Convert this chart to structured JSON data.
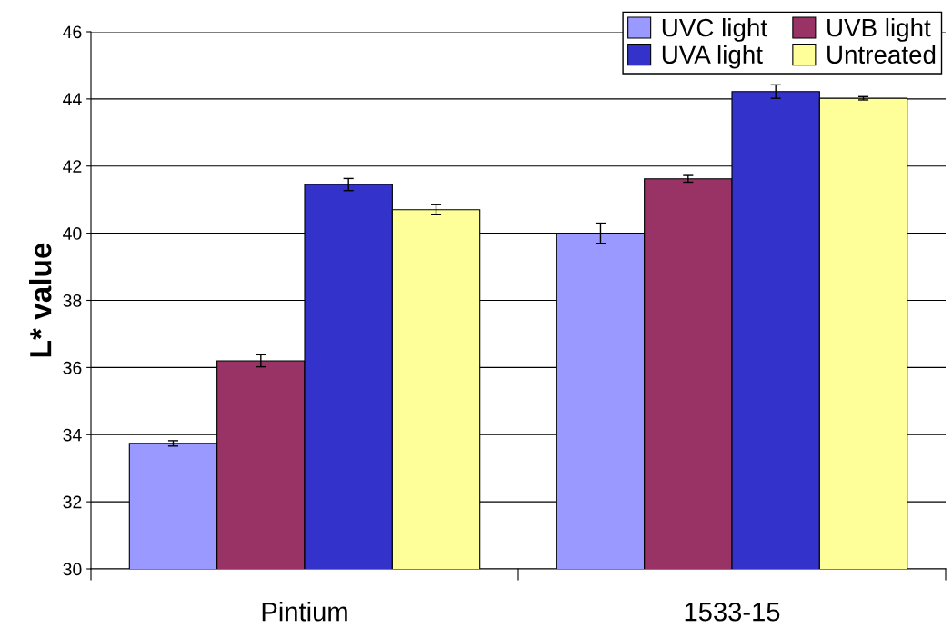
{
  "chart_data": {
    "type": "bar",
    "ylabel": "L* value",
    "categories": [
      "Pintium",
      "1533-15"
    ],
    "series": [
      {
        "name": "UVC light",
        "color": "#9999ff",
        "values": [
          33.74,
          40.0
        ],
        "errors": [
          0.08,
          0.3
        ]
      },
      {
        "name": "UVB light",
        "color": "#993366",
        "values": [
          36.2,
          41.62
        ],
        "errors": [
          0.18,
          0.1
        ]
      },
      {
        "name": "UVA light",
        "color": "#3333cc",
        "values": [
          41.45,
          44.22
        ],
        "errors": [
          0.18,
          0.2
        ]
      },
      {
        "name": "Untreated",
        "color": "#ffff99",
        "values": [
          40.7,
          44.02
        ],
        "errors": [
          0.15,
          0.05
        ]
      }
    ],
    "ylim": [
      30,
      46
    ],
    "yticks": [
      30,
      32,
      34,
      36,
      38,
      40,
      42,
      44,
      46
    ],
    "grid": "y",
    "legend": "top right"
  }
}
